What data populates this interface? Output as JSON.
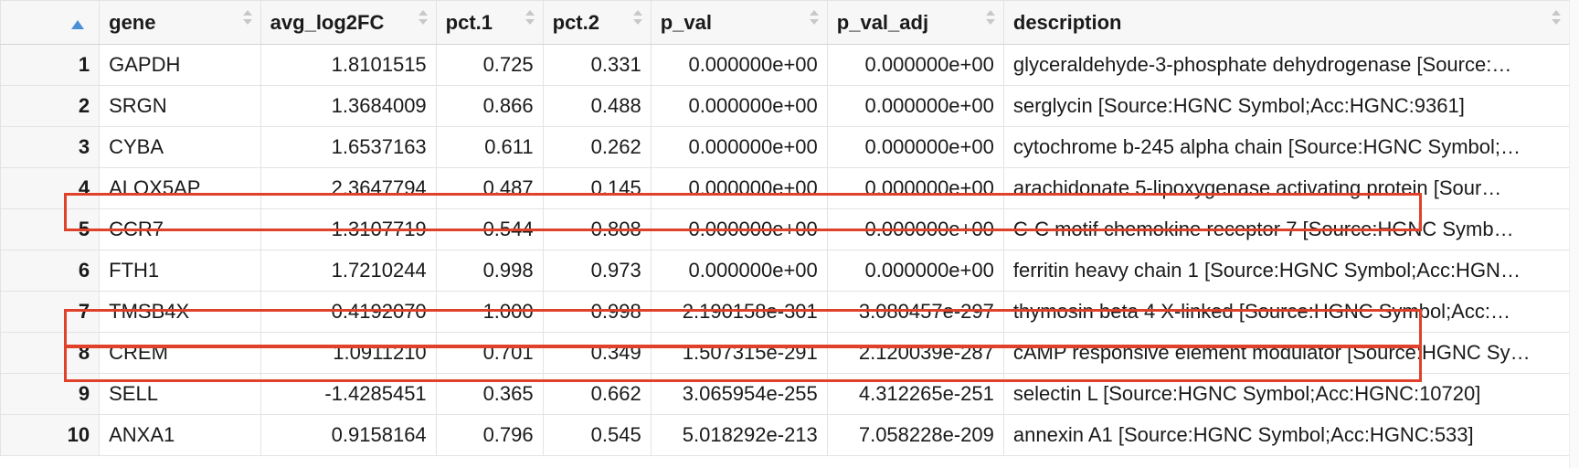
{
  "table": {
    "columns": [
      {
        "key": "index",
        "label": "",
        "sort": "ascending"
      },
      {
        "key": "gene",
        "label": "gene"
      },
      {
        "key": "avg_log2FC",
        "label": "avg_log2FC"
      },
      {
        "key": "pct1",
        "label": "pct.1"
      },
      {
        "key": "pct2",
        "label": "pct.2"
      },
      {
        "key": "p_val",
        "label": "p_val"
      },
      {
        "key": "p_val_adj",
        "label": "p_val_adj"
      },
      {
        "key": "description",
        "label": "description"
      }
    ],
    "rows": [
      {
        "index": "1",
        "gene": "GAPDH",
        "avg_log2FC": "1.8101515",
        "pct1": "0.725",
        "pct2": "0.331",
        "p_val": "0.000000e+00",
        "p_val_adj": "0.000000e+00",
        "description": "glyceraldehyde-3-phosphate dehydrogenase [Source:…"
      },
      {
        "index": "2",
        "gene": "SRGN",
        "avg_log2FC": "1.3684009",
        "pct1": "0.866",
        "pct2": "0.488",
        "p_val": "0.000000e+00",
        "p_val_adj": "0.000000e+00",
        "description": "serglycin [Source:HGNC Symbol;Acc:HGNC:9361]"
      },
      {
        "index": "3",
        "gene": "CYBA",
        "avg_log2FC": "1.6537163",
        "pct1": "0.611",
        "pct2": "0.262",
        "p_val": "0.000000e+00",
        "p_val_adj": "0.000000e+00",
        "description": "cytochrome b-245 alpha chain [Source:HGNC Symbol;…"
      },
      {
        "index": "4",
        "gene": "ALOX5AP",
        "avg_log2FC": "2.3647794",
        "pct1": "0.487",
        "pct2": "0.145",
        "p_val": "0.000000e+00",
        "p_val_adj": "0.000000e+00",
        "description": "arachidonate 5-lipoxygenase activating protein [Sour…"
      },
      {
        "index": "5",
        "gene": "CCR7",
        "avg_log2FC": "-1.3107719",
        "pct1": "0.544",
        "pct2": "0.808",
        "p_val": "0.000000e+00",
        "p_val_adj": "0.000000e+00",
        "description": "C-C motif chemokine receptor 7 [Source:HGNC Symb…",
        "highlighted": true
      },
      {
        "index": "6",
        "gene": "FTH1",
        "avg_log2FC": "1.7210244",
        "pct1": "0.998",
        "pct2": "0.973",
        "p_val": "0.000000e+00",
        "p_val_adj": "0.000000e+00",
        "description": "ferritin heavy chain 1 [Source:HGNC Symbol;Acc:HGN…"
      },
      {
        "index": "7",
        "gene": "TMSB4X",
        "avg_log2FC": "0.4192070",
        "pct1": "1.000",
        "pct2": "0.998",
        "p_val": "2.190158e-301",
        "p_val_adj": "3.080457e-297",
        "description": "thymosin beta 4 X-linked [Source:HGNC Symbol;Acc:…"
      },
      {
        "index": "8",
        "gene": "CREM",
        "avg_log2FC": "1.0911210",
        "pct1": "0.701",
        "pct2": "0.349",
        "p_val": "1.507315e-291",
        "p_val_adj": "2.120039e-287",
        "description": "cAMP responsive element modulator [Source:HGNC Sy…",
        "highlighted": true
      },
      {
        "index": "9",
        "gene": "SELL",
        "avg_log2FC": "-1.4285451",
        "pct1": "0.365",
        "pct2": "0.662",
        "p_val": "3.065954e-255",
        "p_val_adj": "4.312265e-251",
        "description": "selectin L [Source:HGNC Symbol;Acc:HGNC:10720]",
        "highlighted": true
      },
      {
        "index": "10",
        "gene": "ANXA1",
        "avg_log2FC": "0.9158164",
        "pct1": "0.796",
        "pct2": "0.545",
        "p_val": "5.018292e-213",
        "p_val_adj": "7.058228e-209",
        "description": "annexin A1 [Source:HGNC Symbol;Acc:HGNC:533]"
      }
    ]
  },
  "colors": {
    "highlight": "#e0412b",
    "sort_active": "#4a90d9",
    "sort_inactive": "#c8c8c8",
    "header_bg": "#f7f7f7",
    "grid_line": "#e3e3e3"
  },
  "icons": {
    "sort_asc": "sort-ascending-icon",
    "sort_both": "sort-icon"
  }
}
